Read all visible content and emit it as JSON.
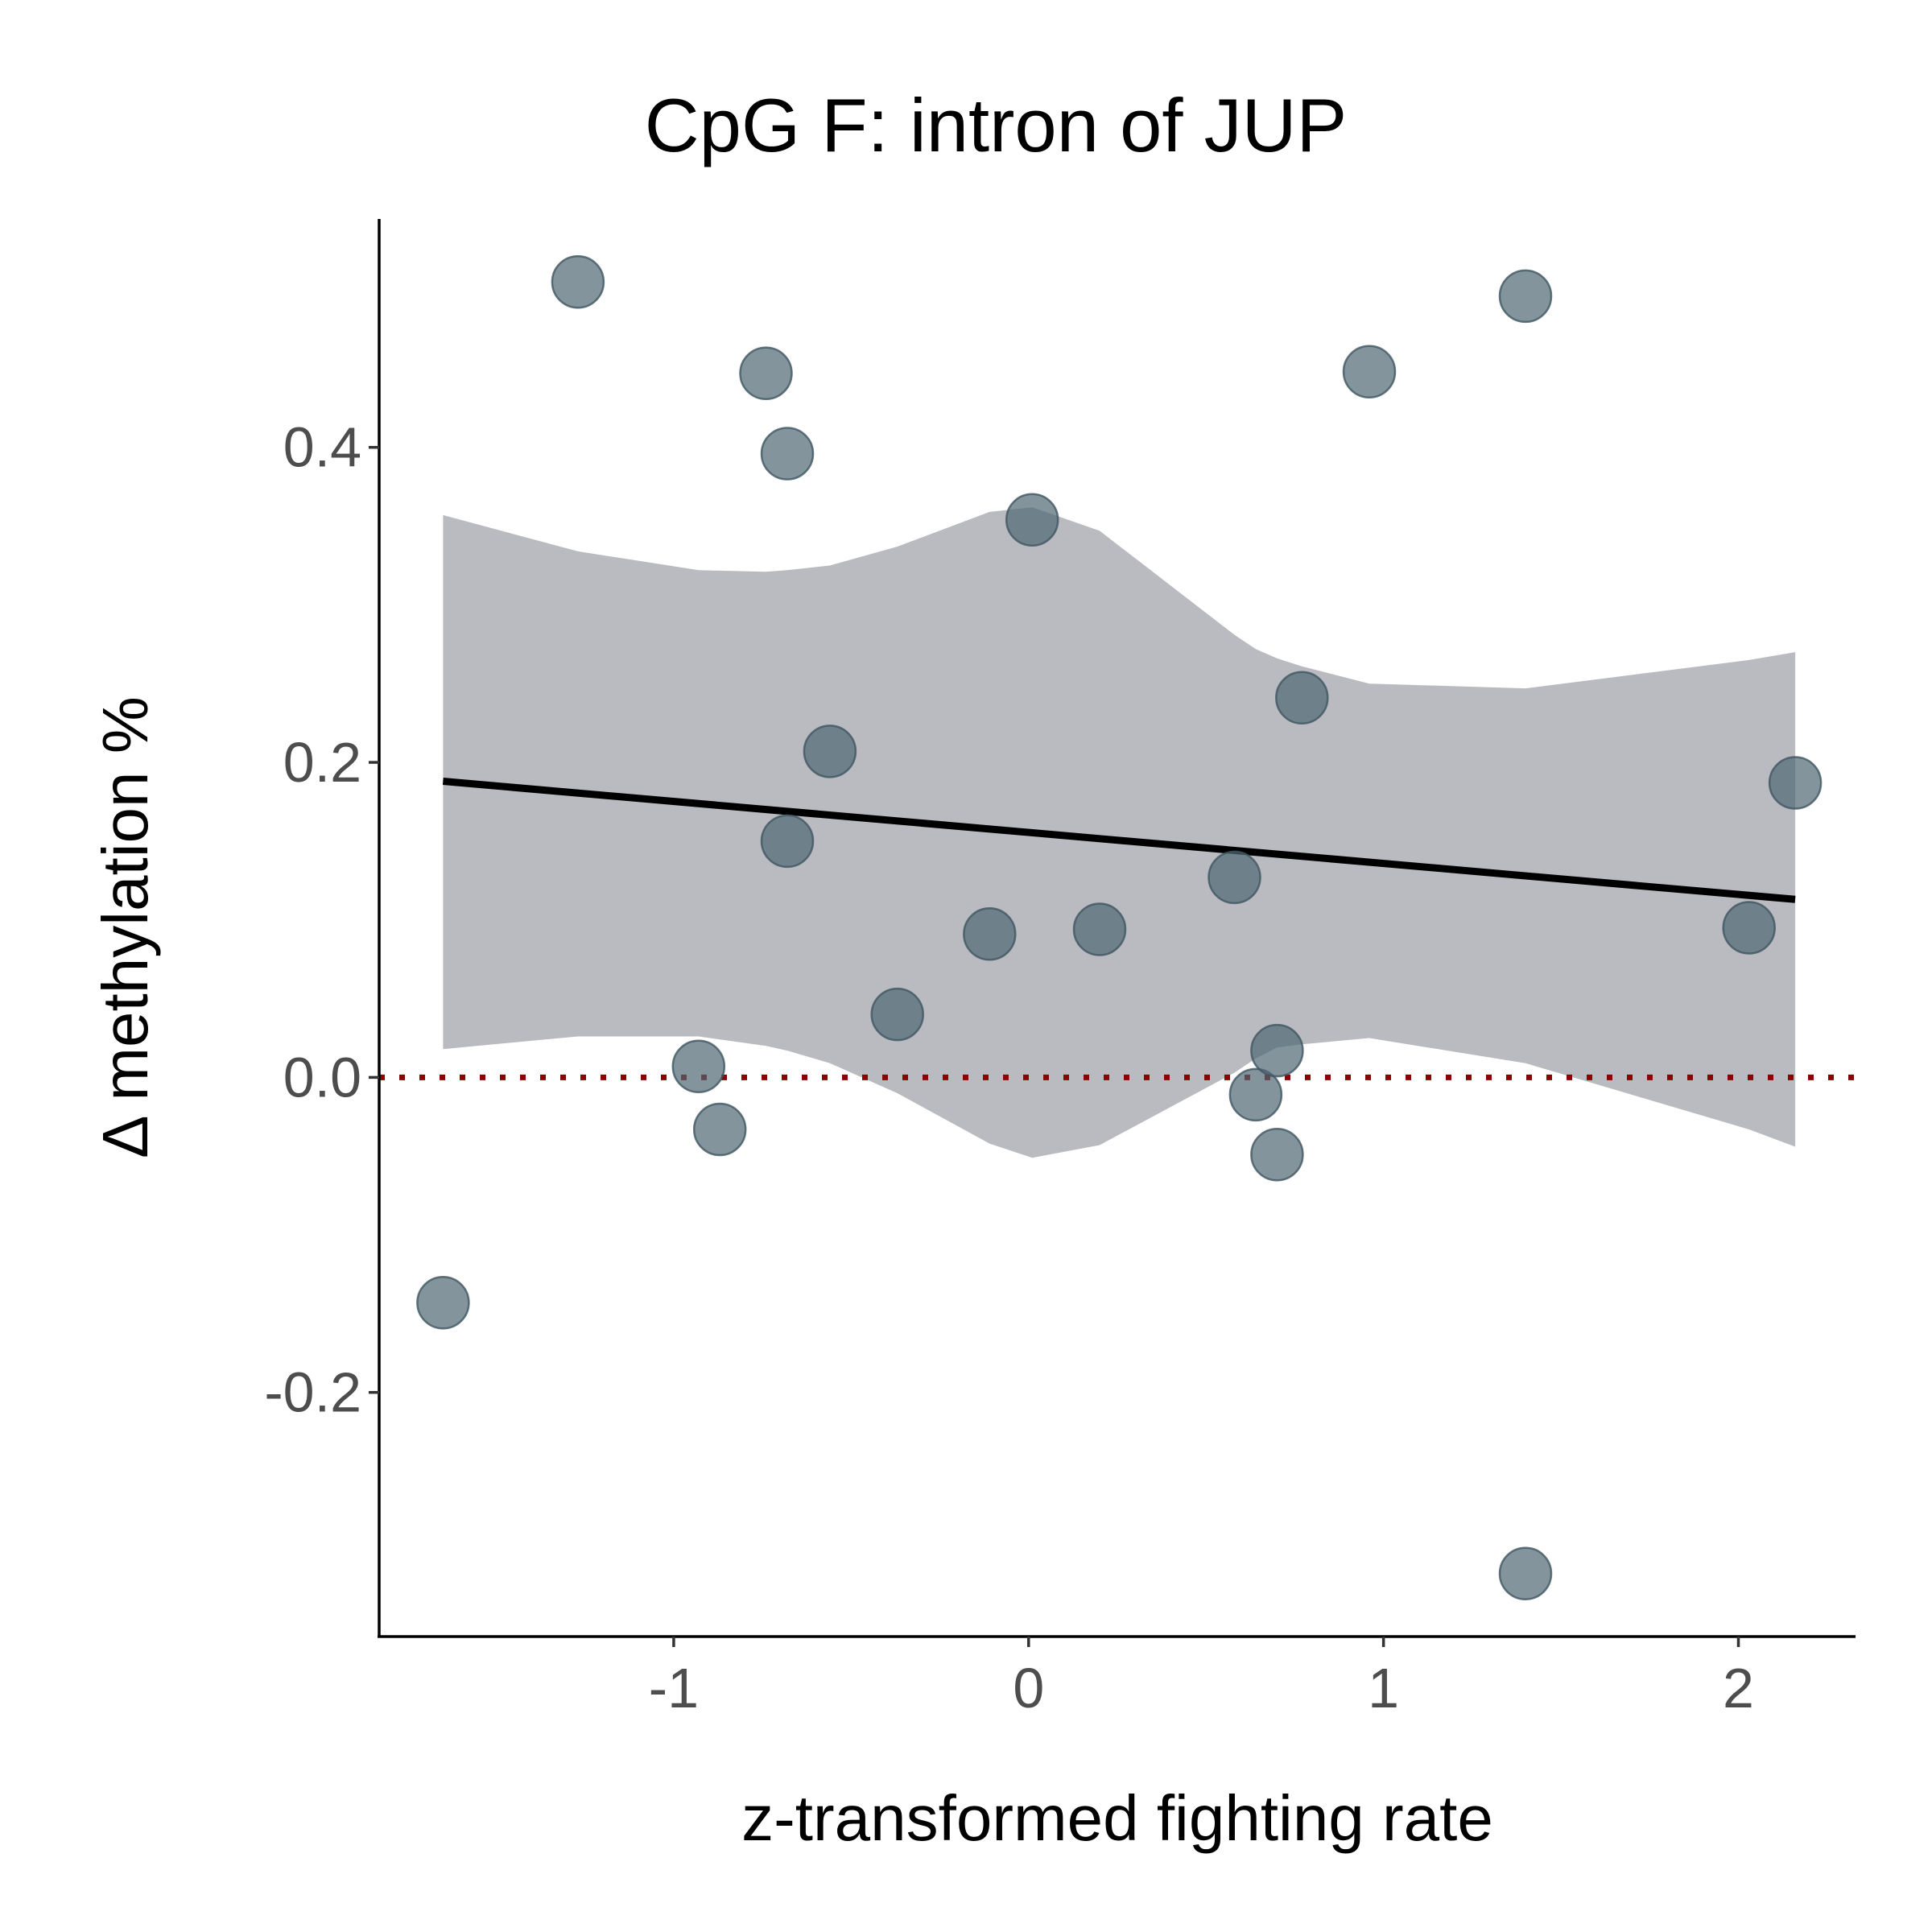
{
  "chart_data": {
    "type": "scatter",
    "title": "CpG F: intron of JUP",
    "xlabel": "z-transformed fighting rate",
    "ylabel": "Δ methylation %",
    "xlim": [
      -1.83,
      2.33
    ],
    "ylim": [
      -0.355,
      0.545
    ],
    "xticks": [
      -1,
      0,
      1,
      2
    ],
    "xtick_labels": [
      "-1",
      "0",
      "1",
      "2"
    ],
    "yticks": [
      -0.2,
      0.0,
      0.2,
      0.4
    ],
    "ytick_labels": [
      "-0.2",
      "0.0",
      "0.2",
      "0.4"
    ],
    "grid": false,
    "legend": "none",
    "points": [
      {
        "x": -1.65,
        "y": -0.143
      },
      {
        "x": -1.27,
        "y": 0.505
      },
      {
        "x": -0.93,
        "y": 0.007
      },
      {
        "x": -0.87,
        "y": -0.033
      },
      {
        "x": -0.74,
        "y": 0.447
      },
      {
        "x": -0.68,
        "y": 0.396
      },
      {
        "x": -0.68,
        "y": 0.15
      },
      {
        "x": -0.56,
        "y": 0.207
      },
      {
        "x": -0.37,
        "y": 0.04
      },
      {
        "x": -0.11,
        "y": 0.091
      },
      {
        "x": 0.01,
        "y": 0.354
      },
      {
        "x": 0.2,
        "y": 0.094
      },
      {
        "x": 0.58,
        "y": 0.127
      },
      {
        "x": 0.64,
        "y": -0.011
      },
      {
        "x": 0.7,
        "y": 0.017
      },
      {
        "x": 0.7,
        "y": -0.049
      },
      {
        "x": 0.77,
        "y": 0.241
      },
      {
        "x": 0.96,
        "y": 0.448
      },
      {
        "x": 1.4,
        "y": 0.496
      },
      {
        "x": 1.4,
        "y": -0.315
      },
      {
        "x": 2.03,
        "y": 0.095
      },
      {
        "x": 2.16,
        "y": 0.187
      }
    ],
    "fit_line": {
      "x": [
        -1.65,
        2.16
      ],
      "y": [
        0.188,
        0.113
      ]
    },
    "confidence_band": {
      "x": [
        -1.65,
        -1.27,
        -0.93,
        -0.74,
        -0.68,
        -0.56,
        -0.37,
        -0.11,
        0.01,
        0.2,
        0.58,
        0.64,
        0.7,
        0.77,
        0.96,
        1.4,
        2.03,
        2.16
      ],
      "upper": [
        0.357,
        0.334,
        0.322,
        0.321,
        0.322,
        0.325,
        0.337,
        0.359,
        0.362,
        0.347,
        0.281,
        0.272,
        0.266,
        0.261,
        0.25,
        0.247,
        0.265,
        0.27
      ],
      "lower": [
        0.018,
        0.026,
        0.026,
        0.02,
        0.017,
        0.009,
        -0.01,
        -0.042,
        -0.051,
        -0.043,
        0.003,
        0.012,
        0.019,
        0.021,
        0.025,
        0.009,
        -0.033,
        -0.044
      ]
    },
    "reference_line": {
      "y": 0.0,
      "style": "dotted"
    },
    "colors": {
      "points": "#4e6672",
      "band": "#babbc1",
      "fit_line": "#000000",
      "reference_line": "#8b0000"
    }
  }
}
